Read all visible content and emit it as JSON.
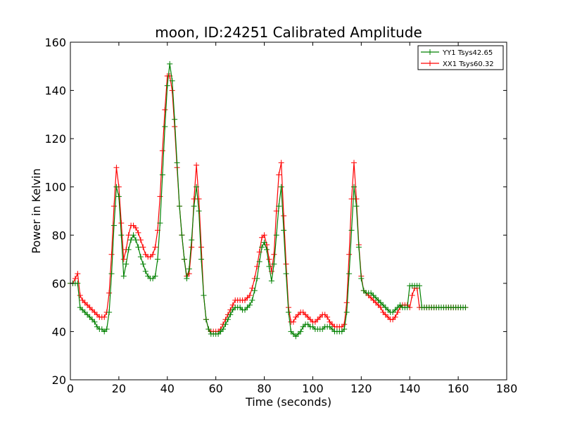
{
  "chart_data": {
    "type": "line",
    "title": "moon, ID:24251 Calibrated Amplitude",
    "xlabel": "Time (seconds)",
    "ylabel": "Power in Kelvin",
    "xlim": [
      0,
      180
    ],
    "ylim": [
      20,
      160
    ],
    "xticks": [
      "0",
      "20",
      "40",
      "60",
      "80",
      "100",
      "120",
      "140",
      "160",
      "180"
    ],
    "yticks": [
      "20",
      "40",
      "60",
      "80",
      "100",
      "120",
      "140",
      "160"
    ],
    "grid": false,
    "legend_position": "top-right",
    "series": [
      {
        "name": "YY1 Tsys42.65",
        "color": "#008000",
        "marker": "plus",
        "x": [
          0,
          1,
          2,
          3,
          4,
          5,
          6,
          7,
          8,
          9,
          10,
          11,
          12,
          13,
          14,
          15,
          16,
          17,
          18,
          19,
          20,
          21,
          22,
          23,
          24,
          25,
          26,
          27,
          28,
          29,
          30,
          31,
          32,
          33,
          34,
          35,
          36,
          37,
          38,
          39,
          40,
          41,
          42,
          43,
          44,
          45,
          46,
          47,
          48,
          49,
          50,
          51,
          52,
          53,
          54,
          55,
          56,
          57,
          58,
          59,
          60,
          61,
          62,
          63,
          64,
          65,
          66,
          67,
          68,
          69,
          70,
          71,
          72,
          73,
          74,
          75,
          76,
          77,
          78,
          79,
          80,
          81,
          82,
          83,
          84,
          85,
          86,
          87,
          88,
          89,
          90,
          91,
          92,
          93,
          94,
          95,
          96,
          97,
          98,
          99,
          100,
          101,
          102,
          103,
          104,
          105,
          106,
          107,
          108,
          109,
          110,
          111,
          112,
          113,
          114,
          115,
          116,
          117,
          118,
          119,
          120,
          121,
          122,
          123,
          124,
          125,
          126,
          127,
          128,
          129,
          130,
          131,
          132,
          133,
          134,
          135,
          136,
          137,
          138,
          139,
          140,
          141,
          142,
          143,
          144,
          145,
          146,
          147,
          148,
          149,
          150,
          151,
          152,
          153,
          154,
          155,
          156,
          157,
          158,
          159,
          160,
          161,
          162,
          163
        ],
        "y": [
          60,
          60,
          60,
          60,
          50,
          49,
          48,
          47,
          46,
          45,
          44,
          42,
          41,
          41,
          40,
          41,
          48,
          64,
          84,
          100,
          96,
          80,
          63,
          68,
          74,
          78,
          80,
          78,
          75,
          71,
          68,
          65,
          63,
          62,
          62,
          63,
          70,
          85,
          105,
          125,
          142,
          151,
          144,
          128,
          110,
          92,
          80,
          70,
          62,
          66,
          78,
          92,
          100,
          90,
          70,
          55,
          45,
          41,
          39,
          39,
          39,
          39,
          40,
          41,
          43,
          45,
          47,
          49,
          50,
          50,
          50,
          49,
          49,
          50,
          51,
          53,
          57,
          62,
          69,
          75,
          77,
          74,
          67,
          61,
          68,
          80,
          92,
          100,
          82,
          64,
          48,
          40,
          39,
          38,
          39,
          40,
          42,
          43,
          43,
          42,
          42,
          41,
          41,
          41,
          41,
          42,
          42,
          42,
          41,
          40,
          40,
          40,
          40,
          41,
          48,
          64,
          82,
          100,
          92,
          75,
          62,
          57,
          56,
          56,
          56,
          55,
          54,
          53,
          52,
          51,
          50,
          49,
          48,
          48,
          49,
          50,
          51,
          50,
          50,
          50,
          59,
          59,
          59,
          59,
          59,
          50,
          50,
          50,
          50,
          50,
          50,
          50,
          50,
          50,
          50,
          50,
          50,
          50,
          50,
          50,
          50,
          50,
          50,
          50
        ],
        "x_end": 163
      },
      {
        "name": "XX1 Tsys60.32",
        "color": "#ff0000",
        "marker": "plus",
        "x": [
          0,
          1,
          2,
          3,
          4,
          5,
          6,
          7,
          8,
          9,
          10,
          11,
          12,
          13,
          14,
          15,
          16,
          17,
          18,
          19,
          20,
          21,
          22,
          23,
          24,
          25,
          26,
          27,
          28,
          29,
          30,
          31,
          32,
          33,
          34,
          35,
          36,
          37,
          38,
          39,
          40,
          41,
          42,
          43,
          44,
          45,
          46,
          47,
          48,
          49,
          50,
          51,
          52,
          53,
          54,
          55,
          56,
          57,
          58,
          59,
          60,
          61,
          62,
          63,
          64,
          65,
          66,
          67,
          68,
          69,
          70,
          71,
          72,
          73,
          74,
          75,
          76,
          77,
          78,
          79,
          80,
          81,
          82,
          83,
          84,
          85,
          86,
          87,
          88,
          89,
          90,
          91,
          92,
          93,
          94,
          95,
          96,
          97,
          98,
          99,
          100,
          101,
          102,
          103,
          104,
          105,
          106,
          107,
          108,
          109,
          110,
          111,
          112,
          113,
          114,
          115,
          116,
          117,
          118,
          119,
          120,
          121,
          122,
          123,
          124,
          125,
          126,
          127,
          128,
          129,
          130,
          131,
          132,
          133,
          134,
          135,
          136,
          137,
          138,
          139,
          140,
          141,
          142,
          143,
          144,
          145,
          146,
          147,
          148,
          149,
          150,
          151,
          152,
          153,
          154,
          155,
          156,
          157,
          158,
          159,
          160,
          161,
          162,
          163
        ],
        "y": [
          60,
          60,
          62,
          64,
          55,
          53,
          52,
          51,
          50,
          49,
          48,
          47,
          46,
          46,
          46,
          48,
          56,
          72,
          92,
          108,
          100,
          85,
          70,
          74,
          80,
          84,
          84,
          83,
          81,
          78,
          75,
          72,
          71,
          71,
          72,
          75,
          82,
          96,
          115,
          132,
          146,
          146,
          140,
          125,
          108,
          92,
          80,
          70,
          63,
          64,
          75,
          95,
          109,
          95,
          75,
          55,
          45,
          41,
          40,
          40,
          40,
          40,
          41,
          43,
          45,
          47,
          49,
          51,
          53,
          53,
          53,
          53,
          53,
          54,
          55,
          58,
          62,
          67,
          73,
          79,
          80,
          76,
          70,
          65,
          72,
          90,
          105,
          110,
          88,
          68,
          50,
          44,
          44,
          46,
          47,
          48,
          48,
          47,
          46,
          45,
          44,
          44,
          45,
          46,
          47,
          47,
          46,
          44,
          43,
          42,
          42,
          42,
          42,
          43,
          52,
          72,
          95,
          110,
          95,
          76,
          63,
          57,
          56,
          55,
          54,
          53,
          52,
          51,
          50,
          48,
          47,
          46,
          45,
          45,
          46,
          48,
          50,
          51,
          51,
          51,
          50,
          55,
          58,
          58,
          50,
          50,
          50,
          50,
          50,
          50,
          50,
          50,
          50,
          50,
          50,
          50,
          50,
          50,
          50,
          50,
          50,
          50,
          50,
          50
        ],
        "x_end": 163
      }
    ]
  }
}
